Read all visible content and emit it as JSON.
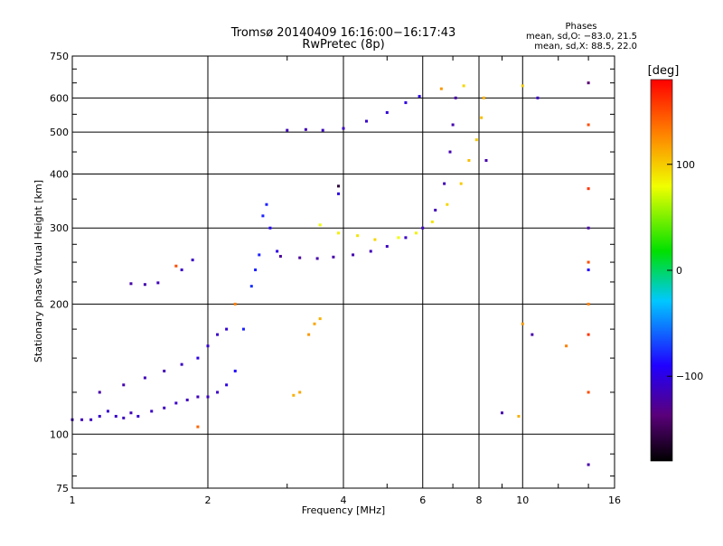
{
  "chart_data": {
    "type": "scatter",
    "title": "Tromsø 20140409 16:16:00−16:17:43",
    "subtitle": "RwPretec (8p)",
    "xlabel": "Frequency [MHz]",
    "ylabel": "Stationary phase Virtual Height [km]",
    "x_scale": "log",
    "y_scale": "log",
    "xlim": [
      1,
      16
    ],
    "ylim": [
      75,
      750
    ],
    "x_ticks": [
      1,
      2,
      4,
      6,
      8,
      10,
      16
    ],
    "x_tick_labels": [
      "1",
      "2",
      "4",
      "6",
      "8",
      "10",
      "16"
    ],
    "y_ticks": [
      75,
      100,
      200,
      300,
      400,
      500,
      600,
      750
    ],
    "y_tick_labels": [
      "75",
      "100",
      "200",
      "300",
      "400",
      "500",
      "600",
      "750"
    ],
    "grid": true,
    "phase_box": {
      "title": "Phases",
      "line_o": "mean, sd,O:  −83.0, 21.5",
      "line_x": "mean, sd,X:  88.5, 22.0"
    },
    "colorbar": {
      "label": "[deg]",
      "range": [
        -180,
        180
      ],
      "ticks": [
        100,
        0,
        -100
      ],
      "tick_labels": [
        "100",
        "0",
        "−100"
      ]
    },
    "series": [
      {
        "values": [
          [
            1.0,
            108,
            -115
          ],
          [
            1.05,
            108,
            -115
          ],
          [
            1.1,
            108,
            -112
          ],
          [
            1.15,
            110,
            -108
          ],
          [
            1.2,
            113,
            -105
          ],
          [
            1.25,
            110,
            -110
          ],
          [
            1.3,
            109,
            -112
          ],
          [
            1.35,
            112,
            -115
          ],
          [
            1.4,
            110,
            -108
          ],
          [
            1.5,
            113,
            -110
          ],
          [
            1.6,
            115,
            -112
          ],
          [
            1.7,
            118,
            -110
          ],
          [
            1.8,
            120,
            -115
          ],
          [
            1.9,
            122,
            -115
          ],
          [
            2.0,
            122,
            -112
          ],
          [
            2.1,
            125,
            -110
          ],
          [
            2.2,
            130,
            -100
          ],
          [
            2.3,
            140,
            -90
          ],
          [
            2.4,
            175,
            -80
          ],
          [
            2.5,
            220,
            -75
          ],
          [
            2.55,
            240,
            -80
          ],
          [
            2.6,
            260,
            -80
          ],
          [
            2.65,
            320,
            -80
          ],
          [
            2.7,
            340,
            -80
          ],
          [
            2.75,
            300,
            -90
          ],
          [
            2.85,
            265,
            -100
          ]
        ]
      },
      {
        "values": [
          [
            1.15,
            125,
            -120
          ],
          [
            1.3,
            130,
            -118
          ],
          [
            1.45,
            135,
            -115
          ],
          [
            1.6,
            140,
            -115
          ],
          [
            1.75,
            145,
            -110
          ],
          [
            1.9,
            150,
            -100
          ],
          [
            2.0,
            160,
            -105
          ],
          [
            2.1,
            170,
            -110
          ],
          [
            2.2,
            175,
            -105
          ]
        ]
      },
      {
        "values": [
          [
            1.35,
            223,
            -120
          ],
          [
            1.45,
            222,
            -118
          ],
          [
            1.55,
            224,
            -115
          ],
          [
            1.75,
            240,
            -110
          ],
          [
            1.85,
            253,
            -110
          ]
        ]
      },
      {
        "values": [
          [
            2.9,
            258,
            -125
          ],
          [
            3.2,
            256,
            -125
          ],
          [
            3.5,
            255,
            -120
          ],
          [
            3.8,
            257,
            -120
          ],
          [
            4.2,
            260,
            -118
          ],
          [
            4.6,
            265,
            -115
          ],
          [
            5.0,
            272,
            -112
          ],
          [
            5.5,
            285,
            -110
          ],
          [
            6.0,
            300,
            -112
          ],
          [
            6.4,
            330,
            -115
          ],
          [
            6.7,
            380,
            -115
          ],
          [
            6.9,
            450,
            -118
          ],
          [
            7.0,
            520,
            -118
          ],
          [
            7.1,
            600,
            -120
          ]
        ]
      },
      {
        "values": [
          [
            3.0,
            505,
            -115
          ],
          [
            3.3,
            507,
            -115
          ],
          [
            3.6,
            505,
            -112
          ],
          [
            4.0,
            510,
            -110
          ],
          [
            4.5,
            530,
            -108
          ],
          [
            5.0,
            555,
            -105
          ],
          [
            5.5,
            585,
            -100
          ],
          [
            5.9,
            605,
            -100
          ]
        ]
      },
      {
        "values": [
          [
            3.55,
            305,
            80
          ],
          [
            3.9,
            292,
            85
          ],
          [
            4.3,
            288,
            90
          ],
          [
            4.7,
            282,
            95
          ],
          [
            5.3,
            285,
            80
          ],
          [
            5.8,
            292,
            85
          ],
          [
            6.3,
            310,
            90
          ],
          [
            6.8,
            340,
            95
          ],
          [
            7.3,
            380,
            100
          ],
          [
            7.6,
            430,
            105
          ],
          [
            7.9,
            480,
            100
          ],
          [
            8.1,
            540,
            105
          ],
          [
            8.2,
            600,
            110
          ]
        ]
      },
      {
        "values": [
          [
            3.35,
            170,
            120
          ],
          [
            3.45,
            180,
            115
          ],
          [
            3.55,
            185,
            110
          ],
          [
            3.1,
            123,
            110
          ],
          [
            3.2,
            125,
            115
          ]
        ]
      },
      {
        "values": [
          [
            2.3,
            200,
            130
          ],
          [
            1.9,
            104,
            140
          ],
          [
            1.7,
            245,
            150
          ],
          [
            6.6,
            630,
            120
          ],
          [
            7.4,
            640,
            95
          ],
          [
            8.3,
            430,
            -120
          ],
          [
            10.0,
            640,
            100
          ],
          [
            10.8,
            600,
            -110
          ],
          [
            14.0,
            650,
            -140
          ],
          [
            14.0,
            520,
            150
          ],
          [
            14.0,
            370,
            160
          ],
          [
            14.0,
            300,
            -120
          ],
          [
            14.0,
            250,
            150
          ],
          [
            14.0,
            240,
            -90
          ],
          [
            14.0,
            200,
            130
          ],
          [
            14.0,
            170,
            160
          ],
          [
            14.0,
            125,
            150
          ],
          [
            14.0,
            85,
            -120
          ],
          [
            10.0,
            180,
            120
          ],
          [
            10.5,
            170,
            -120
          ],
          [
            12.5,
            160,
            130
          ],
          [
            9.0,
            112,
            -120
          ],
          [
            9.8,
            110,
            110
          ],
          [
            3.9,
            375,
            -160
          ],
          [
            3.9,
            360,
            -100
          ]
        ]
      }
    ]
  }
}
